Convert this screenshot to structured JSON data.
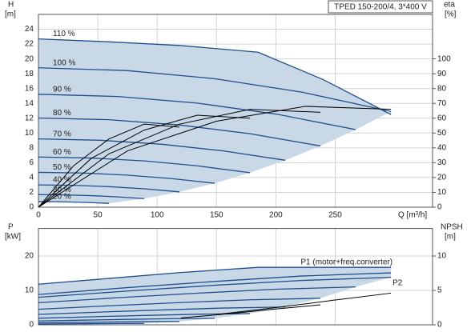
{
  "chart_data": [
    {
      "type": "line",
      "title": "TPED 150-200/4, 3*400 V",
      "ylabel": [
        "H",
        "[m]"
      ],
      "y2label": [
        "eta",
        "[%]"
      ],
      "xlabel": "Q [m³/h]",
      "xlim": [
        0,
        332
      ],
      "ylim": [
        0,
        26
      ],
      "y2lim": [
        0,
        130
      ],
      "xticks": [
        0,
        50,
        100,
        150,
        200,
        250
      ],
      "yticks": [
        0,
        2,
        4,
        6,
        8,
        10,
        12,
        14,
        16,
        18,
        20,
        22,
        24
      ],
      "y2ticks": [
        0,
        10,
        20,
        30,
        40,
        50,
        60,
        70,
        80,
        90,
        100
      ],
      "grid": true,
      "area_color": "#c9d8e6",
      "series": [
        {
          "name": "110 %",
          "color": "#1f4e8c",
          "x": [
            0,
            60,
            120,
            185,
            240,
            297
          ],
          "values": [
            22.7,
            22.3,
            21.8,
            20.9,
            17.2,
            12.5
          ]
        },
        {
          "name": "100 %",
          "color": "#1f4e8c",
          "x": [
            0,
            74.3,
            148.5,
            222.8,
            297
          ],
          "values": [
            18.8,
            18.43,
            17.33,
            15.49,
            12.91
          ]
        },
        {
          "name": "90 %",
          "color": "#1f4e8c",
          "x": [
            0,
            66.8,
            133.7,
            200.5,
            267.3
          ],
          "values": [
            15.23,
            14.93,
            14.04,
            12.55,
            10.46
          ]
        },
        {
          "name": "80 %",
          "color": "#1f4e8c",
          "x": [
            0,
            59.4,
            118.8,
            178.2,
            237.6
          ],
          "values": [
            12.03,
            11.8,
            11.09,
            9.91,
            8.26
          ]
        },
        {
          "name": "70 %",
          "color": "#1f4e8c",
          "x": [
            0,
            52,
            104,
            155.9,
            207.9
          ],
          "values": [
            9.21,
            9.03,
            8.49,
            7.59,
            6.33
          ]
        },
        {
          "name": "60 %",
          "color": "#1f4e8c",
          "x": [
            0,
            44.6,
            89.1,
            133.7,
            178.2
          ],
          "values": [
            6.77,
            6.63,
            6.24,
            5.58,
            4.65
          ]
        },
        {
          "name": "50 %",
          "color": "#1f4e8c",
          "x": [
            0,
            37.1,
            74.3,
            111.4,
            148.5
          ],
          "values": [
            4.7,
            4.61,
            4.33,
            3.87,
            3.23
          ]
        },
        {
          "name": "40 %",
          "color": "#1f4e8c",
          "x": [
            0,
            29.7,
            59.4,
            89.1,
            118.8
          ],
          "values": [
            3.01,
            2.95,
            2.77,
            2.48,
            2.07
          ]
        },
        {
          "name": "30 %",
          "color": "#1f4e8c",
          "x": [
            0,
            22.3,
            44.6,
            66.8,
            89.1
          ],
          "values": [
            1.69,
            1.66,
            1.56,
            1.39,
            1.16
          ]
        },
        {
          "name": "20 %",
          "color": "#1f4e8c",
          "x": [
            0,
            14.9,
            29.7,
            44.6,
            59.4
          ],
          "values": [
            0.75,
            0.74,
            0.69,
            0.62,
            0.52
          ]
        },
        {
          "color": "#000000",
          "axis": "y2",
          "x": [
            0,
            75,
            150,
            225,
            297
          ],
          "values": [
            0,
            38,
            58,
            68,
            66
          ]
        },
        {
          "color": "#000000",
          "axis": "y2",
          "x": [
            0,
            59.4,
            118.8,
            178.2,
            237.6
          ],
          "values": [
            0,
            36,
            56,
            66,
            64
          ]
        },
        {
          "color": "#000000",
          "axis": "y2",
          "x": [
            0,
            44.6,
            89.1,
            133.7,
            178.2
          ],
          "values": [
            0,
            33,
            52,
            62,
            60
          ]
        },
        {
          "color": "#000000",
          "axis": "y2",
          "x": [
            0,
            29.7,
            59.4,
            89.1,
            118.8
          ],
          "values": [
            0,
            28,
            46,
            56,
            54
          ]
        }
      ]
    },
    {
      "type": "line",
      "ylabel": [
        "P",
        "[kW]"
      ],
      "y2label": [
        "NPSH",
        "[m]"
      ],
      "ylim": [
        0,
        28
      ],
      "y2lim": [
        0,
        14
      ],
      "yticks": [
        0,
        10,
        20
      ],
      "y2ticks": [
        0,
        5,
        10
      ],
      "grid": true,
      "area_color": "#c9d8e6",
      "series": [
        {
          "color": "#1f4e8c",
          "x": [
            0,
            60,
            120,
            185,
            240,
            297
          ],
          "values": [
            11.8,
            13.5,
            15.2,
            16.7,
            16.7,
            16.7
          ]
        },
        {
          "name": "P1 (motor+freq.converter)",
          "color": "#1f4e8c",
          "x": [
            0,
            74.3,
            148.5,
            222.8,
            297
          ],
          "values": [
            8.8,
            10.8,
            12.6,
            14.2,
            15.1
          ]
        },
        {
          "name": "P2",
          "color": "#1f4e8c",
          "x": [
            0,
            74.3,
            148.5,
            222.8,
            297
          ],
          "values": [
            8.0,
            9.8,
            11.5,
            12.9,
            13.8
          ]
        },
        {
          "color": "#1f4e8c",
          "x": [
            0,
            66.8,
            133.7,
            200.5,
            267.3
          ],
          "values": [
            6.42,
            7.87,
            9.19,
            10.35,
            11.01
          ]
        },
        {
          "color": "#1f4e8c",
          "x": [
            0,
            59.4,
            118.8,
            178.2,
            237.6
          ],
          "values": [
            4.51,
            5.53,
            6.45,
            7.27,
            7.73
          ]
        },
        {
          "color": "#1f4e8c",
          "x": [
            0,
            52,
            104,
            155.9,
            207.9
          ],
          "values": [
            3.02,
            3.7,
            4.32,
            4.87,
            5.18
          ]
        },
        {
          "color": "#1f4e8c",
          "x": [
            0,
            44.6,
            89.1,
            133.7,
            178.2
          ],
          "values": [
            1.9,
            2.33,
            2.72,
            3.07,
            3.26
          ]
        },
        {
          "color": "#1f4e8c",
          "x": [
            0,
            37.1,
            74.3,
            111.4,
            148.5
          ],
          "values": [
            1.1,
            1.35,
            1.58,
            1.78,
            1.89
          ]
        },
        {
          "color": "#1f4e8c",
          "x": [
            0,
            29.7,
            59.4,
            89.1,
            118.8
          ],
          "values": [
            0.56,
            0.69,
            0.81,
            0.91,
            0.97
          ]
        },
        {
          "color": "#1f4e8c",
          "x": [
            0,
            22.3,
            44.6,
            66.8,
            89.1
          ],
          "values": [
            0.24,
            0.29,
            0.34,
            0.38,
            0.41
          ]
        },
        {
          "color": "#000000",
          "axis": "y2",
          "x": [
            150,
            200,
            250,
            297
          ],
          "values": [
            1.5,
            2.5,
            3.6,
            4.6
          ]
        },
        {
          "color": "#000000",
          "axis": "y2",
          "x": [
            120,
            160,
            200,
            237.6
          ],
          "values": [
            1.0,
            1.6,
            2.3,
            2.9
          ]
        }
      ]
    }
  ]
}
